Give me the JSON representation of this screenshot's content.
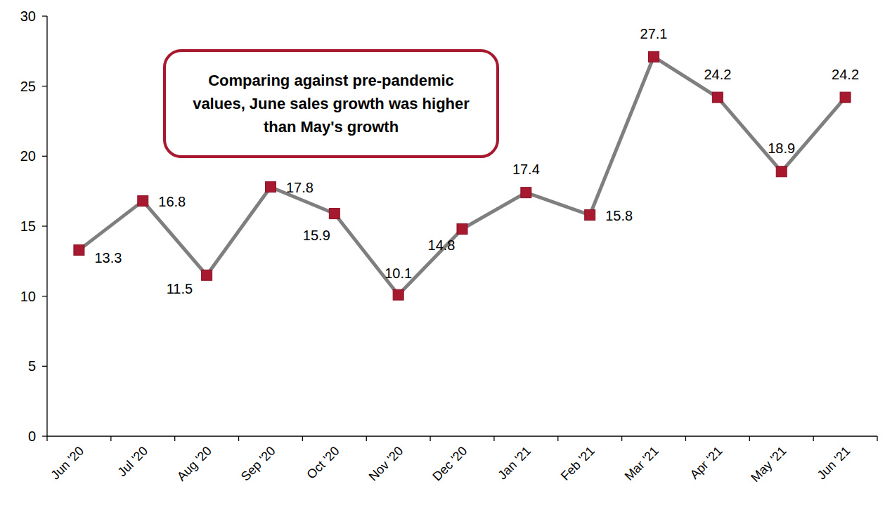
{
  "chart_data": {
    "type": "line",
    "categories": [
      "Jun '20",
      "Jul '20",
      "Aug '20",
      "Sep '20",
      "Oct '20",
      "Nov '20",
      "Dec '20",
      "Jan '21",
      "Feb '21",
      "Mar '21",
      "Apr '21",
      "May '21",
      "Jun '21"
    ],
    "values": [
      13.3,
      16.8,
      11.5,
      17.8,
      15.9,
      10.1,
      14.8,
      17.4,
      15.8,
      27.1,
      24.2,
      18.9,
      24.2
    ],
    "color": "#7f7f7f",
    "marker": "square",
    "line_style": "solid",
    "ylim": [
      0,
      30
    ],
    "yticks": [
      0,
      5,
      10,
      15,
      20,
      25,
      30
    ],
    "grid": false,
    "data_labels": true,
    "annotations": [
      "Comparing against pre-pandemic values, June sales growth was higher than May's growth"
    ]
  }
}
